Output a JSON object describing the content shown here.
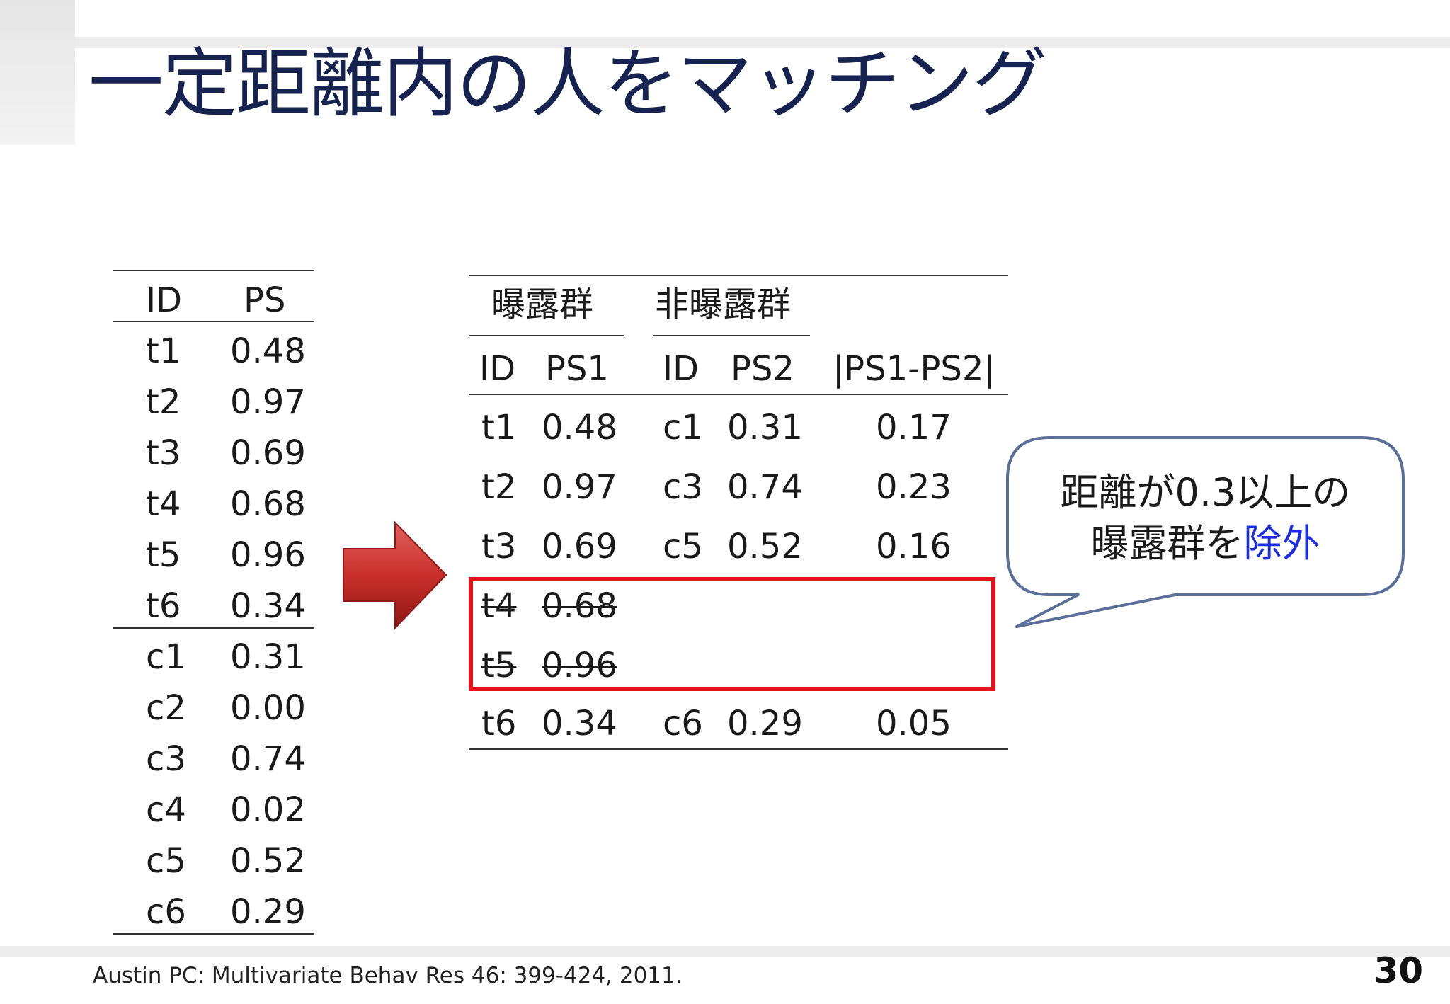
{
  "slide": {
    "title": "一定距離内の人をマッチング",
    "citation": "Austin PC: Multivariate Behav Res 46: 399-424, 2011.",
    "page_number": "30"
  },
  "left_table": {
    "headers": [
      "ID",
      "PS"
    ],
    "rows": [
      [
        "t1",
        "0.48"
      ],
      [
        "t2",
        "0.97"
      ],
      [
        "t3",
        "0.69"
      ],
      [
        "t4",
        "0.68"
      ],
      [
        "t5",
        "0.96"
      ],
      [
        "t6",
        "0.34"
      ],
      [
        "c1",
        "0.31"
      ],
      [
        "c2",
        "0.00"
      ],
      [
        "c3",
        "0.74"
      ],
      [
        "c4",
        "0.02"
      ],
      [
        "c5",
        "0.52"
      ],
      [
        "c6",
        "0.29"
      ]
    ]
  },
  "right_table": {
    "group_headers": [
      "曝露群",
      "非曝露群"
    ],
    "headers": [
      "ID",
      "PS1",
      "ID",
      "PS2",
      "|PS1-PS2|"
    ],
    "rows": [
      [
        "t1",
        "0.48",
        "c1",
        "0.31",
        "0.17"
      ],
      [
        "t2",
        "0.97",
        "c3",
        "0.74",
        "0.23"
      ],
      [
        "t3",
        "0.69",
        "c5",
        "0.52",
        "0.16"
      ],
      [
        "t4",
        "0.68",
        "",
        "",
        ""
      ],
      [
        "t5",
        "0.96",
        "",
        "",
        ""
      ],
      [
        "t6",
        "0.34",
        "c6",
        "0.29",
        "0.05"
      ]
    ]
  },
  "callout": {
    "line1": "距離が0.3以上の",
    "line2_prefix": "曝露群を",
    "line2_highlight": "除外"
  },
  "icons": {
    "arrow": "right-arrow-icon"
  },
  "colors": {
    "title": "#16224f",
    "highlight_box": "#e5121b",
    "highlight_text": "#1c2fe6",
    "arrow": "#c9302c",
    "callout_border": "#5a6f9a"
  }
}
